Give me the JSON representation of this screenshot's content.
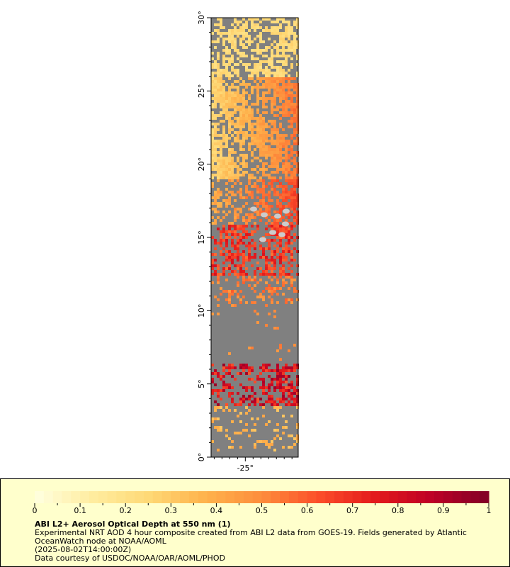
{
  "map": {
    "lat_ticks": [
      "0°",
      "5°",
      "10°",
      "15°",
      "20°",
      "25°",
      "30°"
    ],
    "lat_range": [
      0,
      30
    ],
    "lon_ticks": [
      "-25°"
    ],
    "lon_value": -25,
    "lon_range": [
      -26.1,
      -23.3
    ],
    "land_color": "#808080",
    "cloud_color": "#cccccc"
  },
  "legend": {
    "title": "ABI L2+ Aerosol Optical Depth at 550 nm (1)",
    "description": "Experimental NRT AOD 4 hour composite created from ABI L2 data from GOES-19. Fields generated by Atlantic OceanWatch node at NOAA/AOML",
    "timestamp": "(2025-08-02T14:00:00Z)",
    "credit": "Data courtesy of USDOC/NOAA/OAR/AOML/PHOD",
    "scale_min": 0,
    "scale_max": 1,
    "tick_labels": [
      "0",
      "0.1",
      "0.2",
      "0.3",
      "0.4",
      "0.5",
      "0.6",
      "0.7",
      "0.8",
      "0.9",
      "1"
    ],
    "colors": [
      "#ffffe0",
      "#ffeda0",
      "#fed976",
      "#feb24c",
      "#fd8d3c",
      "#fc4e2a",
      "#e31a1c",
      "#bd0026",
      "#800026"
    ]
  }
}
